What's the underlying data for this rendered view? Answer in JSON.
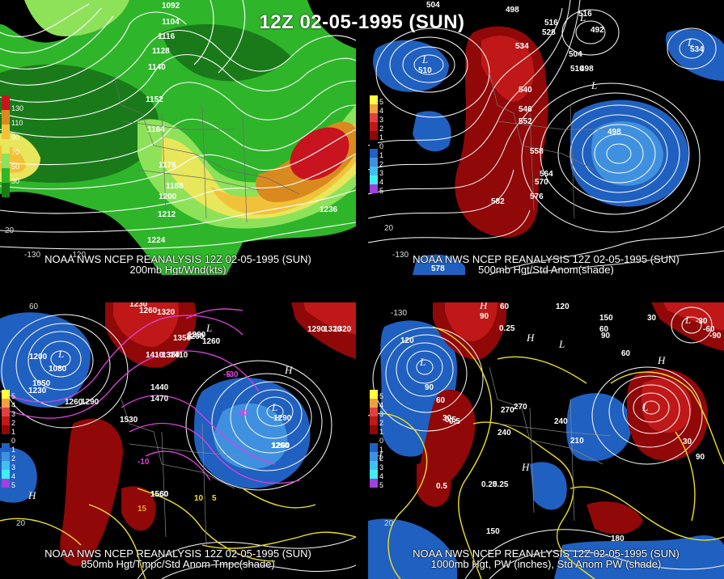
{
  "title": "12Z 02-05-1995 (SUN)",
  "panels": [
    {
      "id": "p200",
      "caption_line1": "NOAA NWS NCEP REANALYSIS 12Z 02-05-1995 (SUN)",
      "caption_line2": "200mb Hgt/Wnd(kts)",
      "legend": [
        "130",
        "110",
        "90",
        "70",
        "50",
        "30"
      ],
      "legend_colors": [
        "#c8141e",
        "#d98a1e",
        "#f0c23a",
        "#e8e65a",
        "#8ee25a",
        "#2fb52a",
        "#1a7a1a"
      ],
      "contour_labels": [
        "1092",
        "1104",
        "1116",
        "1128",
        "1140",
        "1152",
        "1164",
        "1176",
        "1188",
        "1200",
        "1212",
        "1224",
        "1236"
      ],
      "axis_ticks": [
        "-130",
        "-120",
        "20"
      ]
    },
    {
      "id": "p500",
      "caption_line1": "NOAA NWS NCEP REANALYSIS 12Z 02-05-1995 (SUN)",
      "caption_line2": "500mb Hgt/Std Anom(shade)",
      "legend": [
        "5",
        "4",
        "3",
        "2",
        "1",
        "0",
        "1",
        "2",
        "3",
        "4",
        "5"
      ],
      "legend_colors": [
        "#ffff40",
        "#f0a040",
        "#e04040",
        "#c01818",
        "#900808",
        "#000000",
        "#2060c0",
        "#4090e0",
        "#40c0f0",
        "#40f0f0",
        "#a040e0"
      ],
      "contour_labels": [
        "504",
        "498",
        "516",
        "528",
        "534",
        "492",
        "534",
        "504",
        "498",
        "510",
        "540",
        "546",
        "552",
        "558",
        "564",
        "570",
        "576",
        "582",
        "498",
        "510",
        "516",
        "578"
      ],
      "lows": [
        "L",
        "L",
        "L",
        "L"
      ],
      "axis_ticks": [
        "20",
        "-130"
      ]
    },
    {
      "id": "p850",
      "caption_line1": "NOAA NWS NCEP REANALYSIS 12Z 02-05-1995 (SUN)",
      "caption_line2": "850mb Hgt/Tmpc/Std Anom Tmpc(shade)",
      "legend": [
        "5",
        "4",
        "3",
        "2",
        "1",
        "0",
        "1",
        "2",
        "3",
        "4",
        "5"
      ],
      "contour_labels": [
        "1230",
        "1260",
        "1320",
        "1350",
        "1410",
        "1380",
        "1290",
        "1260",
        "1440",
        "1470",
        "1530",
        "1560",
        "1290",
        "1260",
        "1080",
        "1050",
        "1260",
        "1290",
        "1230",
        "1200",
        "1260",
        "1320",
        "1290",
        "1320",
        "1410",
        "1560",
        "1260"
      ],
      "temp_labels": [
        "-30",
        "-20",
        "-10",
        "15",
        "10",
        "5",
        "-5"
      ],
      "highs": [
        "H",
        "H"
      ],
      "lows": [
        "L",
        "L",
        "L"
      ],
      "axis_ticks": [
        "60",
        "20"
      ]
    },
    {
      "id": "p1000",
      "caption_line1": "NOAA NWS NCEP REANALYSIS 12Z 02-05-1995 (SUN)",
      "caption_line2": "1000mb Hgt, PW (inches), Std Anom PW (shade)",
      "legend": [
        "5",
        "4",
        "3",
        "2",
        "1",
        "0",
        "1",
        "2",
        "3",
        "4",
        "5"
      ],
      "contour_labels": [
        "60",
        "120",
        "90",
        "0.25",
        "150",
        "60",
        "30",
        "90",
        "60",
        "120",
        "90",
        "60",
        "30",
        "270",
        "240",
        "210",
        "240",
        "270",
        "0.5",
        "0.25",
        "0.5",
        "150",
        "180",
        "30",
        "90",
        "-30",
        "-60",
        "-90",
        "0.5",
        "0.25"
      ],
      "highs": [
        "H",
        "H",
        "H",
        "H",
        "H"
      ],
      "lows": [
        "L",
        "L",
        "L",
        "L"
      ],
      "axis_ticks": [
        "20",
        "-130"
      ]
    }
  ]
}
